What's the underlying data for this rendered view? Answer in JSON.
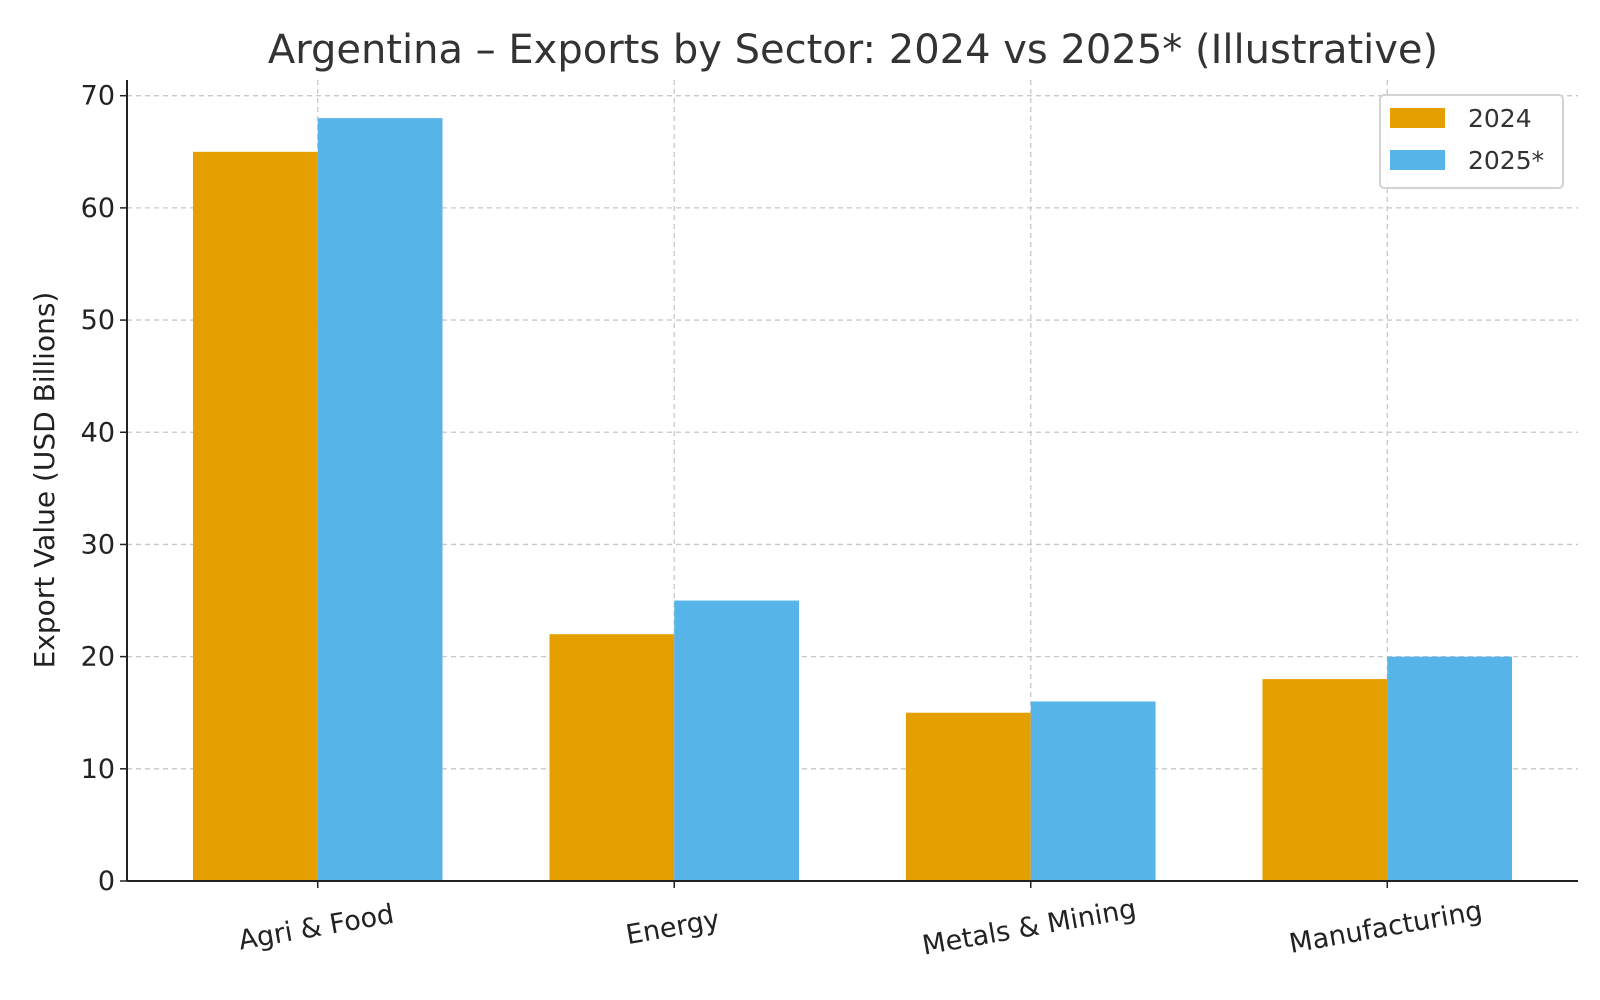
{
  "chart_data": {
    "type": "bar",
    "title": "Argentina – Exports by Sector: 2024 vs 2025* (Illustrative)",
    "xlabel": "",
    "ylabel": "Export Value (USD Billions)",
    "categories": [
      "Agri & Food",
      "Energy",
      "Metals & Mining",
      "Manufacturing"
    ],
    "series": [
      {
        "name": "2024",
        "values": [
          65,
          22,
          15,
          18
        ],
        "color": "#E69F00"
      },
      {
        "name": "2025*",
        "values": [
          68,
          25,
          16,
          20
        ],
        "color": "#56B4E9"
      }
    ],
    "ylim": [
      0,
      71.4
    ],
    "yticks": [
      0,
      10,
      20,
      30,
      40,
      50,
      60,
      70
    ],
    "grid": true,
    "legend_position": "top-right"
  }
}
